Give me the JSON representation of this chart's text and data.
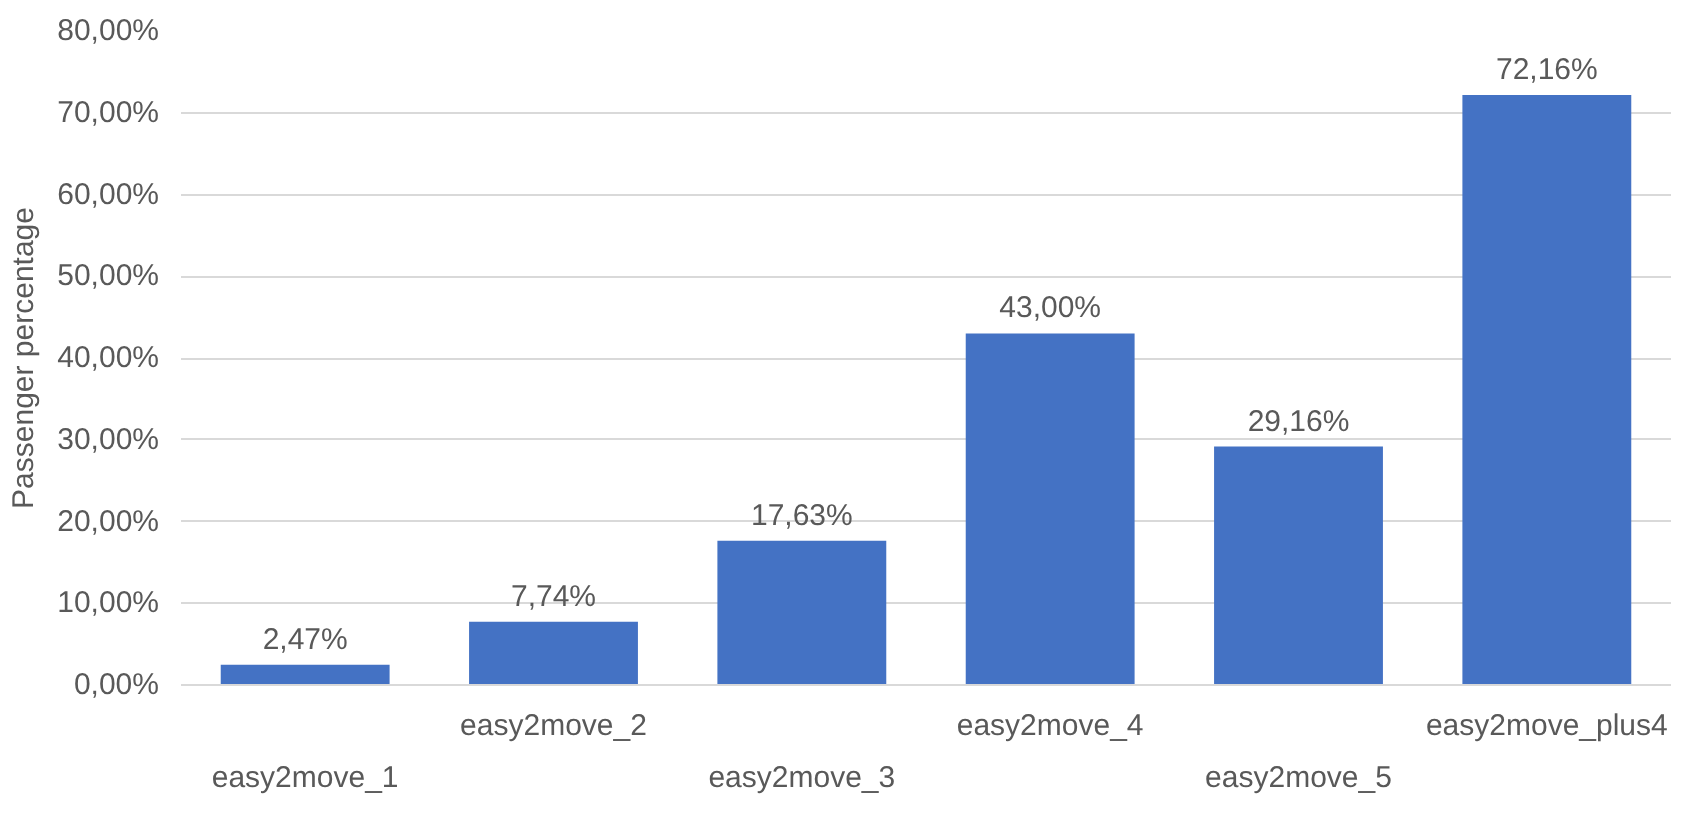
{
  "chart_data": {
    "type": "bar",
    "ylabel": "Passenger percentage",
    "categories": [
      "easy2move_1",
      "easy2move_2",
      "easy2move_3",
      "easy2move_4",
      "easy2move_5",
      "easy2move_plus4"
    ],
    "values": [
      2.47,
      7.74,
      17.63,
      43.0,
      29.16,
      72.16
    ],
    "value_labels": [
      "2,47%",
      "7,74%",
      "17,63%",
      "43,00%",
      "29,16%",
      "72,16%"
    ],
    "color": "#4472c4",
    "ylim": [
      0,
      80
    ],
    "yticks": [
      {
        "value": 0,
        "label": "0,00%"
      },
      {
        "value": 10,
        "label": "10,00%"
      },
      {
        "value": 20,
        "label": "20,00%"
      },
      {
        "value": 30,
        "label": "30,00%"
      },
      {
        "value": 40,
        "label": "40,00%"
      },
      {
        "value": 50,
        "label": "50,00%"
      },
      {
        "value": 60,
        "label": "60,00%"
      },
      {
        "value": 70,
        "label": "70,00%"
      },
      {
        "value": 80,
        "label": "80,00%"
      }
    ],
    "grid": "y"
  }
}
